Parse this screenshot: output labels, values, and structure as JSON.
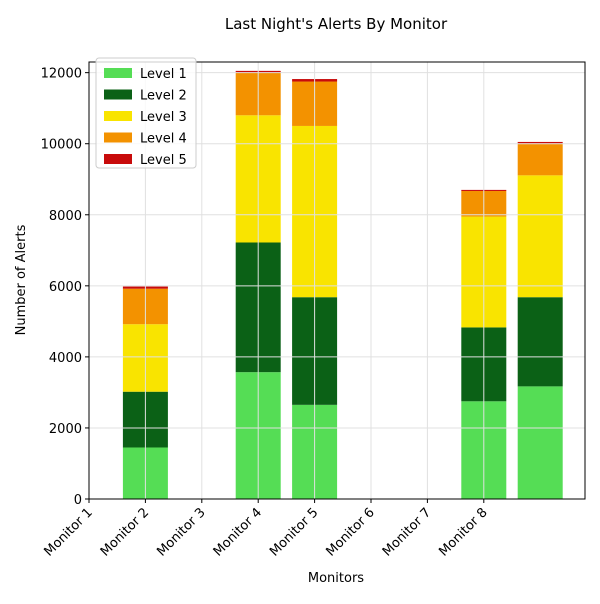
{
  "chart_data": {
    "type": "stacked_bar",
    "title": "Last Night's Alerts By Monitor",
    "xlabel": "Monitors",
    "ylabel": "Number of Alerts",
    "categories": [
      "Monitor 1",
      "Monitor 2",
      "Monitor 3",
      "Monitor 4",
      "Monitor 5",
      "Monitor 6",
      "Monitor 7",
      "Monitor 8",
      null
    ],
    "series": [
      {
        "name": "Level 1",
        "color": "#55dd55",
        "values": [
          null,
          1450,
          null,
          3570,
          2650,
          null,
          null,
          2750,
          3170
        ]
      },
      {
        "name": "Level 2",
        "color": "#0b6116",
        "values": [
          null,
          1570,
          null,
          3650,
          3030,
          null,
          null,
          2080,
          2510
        ]
      },
      {
        "name": "Level 3",
        "color": "#f9e400",
        "values": [
          null,
          1900,
          null,
          3580,
          4820,
          null,
          null,
          3120,
          3430
        ]
      },
      {
        "name": "Level 4",
        "color": "#f39200",
        "values": [
          null,
          1000,
          null,
          1200,
          1250,
          null,
          null,
          720,
          900
        ]
      },
      {
        "name": "Level 5",
        "color": "#c80b0b",
        "values": [
          null,
          60,
          null,
          50,
          70,
          null,
          null,
          30,
          40
        ]
      }
    ],
    "ylim": [
      0,
      12300
    ],
    "yticks": [
      0,
      2000,
      4000,
      6000,
      8000,
      10000,
      12000
    ],
    "grid": true,
    "legend": "upper left"
  }
}
